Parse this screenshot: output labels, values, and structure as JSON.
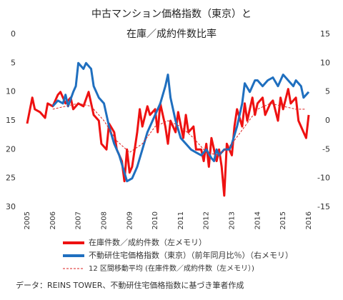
{
  "chart_data": {
    "type": "line",
    "title": "中古マンション価格指数（東京）と",
    "subtitle": "在庫／成約件数比率",
    "note": "データ：REINS TOWER、不動研住宅価格指数に基づき筆者作成",
    "xlim": [
      2005,
      2016
    ],
    "xticks": [
      2005,
      2006,
      2007,
      2008,
      2009,
      2010,
      2011,
      2012,
      2013,
      2014,
      2015,
      2016
    ],
    "ylim": [
      0,
      30
    ],
    "y_inverted": true,
    "yticks": [
      0,
      5,
      10,
      15,
      20,
      25,
      30
    ],
    "y2lim": [
      -15,
      15
    ],
    "y2ticks": [
      15,
      10,
      5,
      0,
      -5,
      -10,
      -15
    ],
    "grid": false,
    "series": [
      {
        "name": "在庫件数／成約件数（左メモリ）",
        "color": "#ee1111",
        "axis": "y",
        "dashed": false,
        "x": [
          2005.0,
          2005.2,
          2005.3,
          2005.5,
          2005.7,
          2005.8,
          2006.0,
          2006.2,
          2006.3,
          2006.5,
          2006.7,
          2006.8,
          2007.0,
          2007.2,
          2007.4,
          2007.6,
          2007.8,
          2007.9,
          2008.1,
          2008.2,
          2008.4,
          2008.5,
          2008.7,
          2008.8,
          2008.9,
          2009.0,
          2009.1,
          2009.3,
          2009.4,
          2009.5,
          2009.7,
          2009.8,
          2010.0,
          2010.1,
          2010.2,
          2010.4,
          2010.5,
          2010.6,
          2010.8,
          2010.9,
          2011.1,
          2011.2,
          2011.3,
          2011.5,
          2011.6,
          2011.8,
          2011.9,
          2012.0,
          2012.1,
          2012.2,
          2012.4,
          2012.5,
          2012.6,
          2012.7,
          2012.8,
          2013.0,
          2013.1,
          2013.2,
          2013.4,
          2013.5,
          2013.6,
          2013.8,
          2013.9,
          2014.0,
          2014.2,
          2014.3,
          2014.5,
          2014.6,
          2014.8,
          2014.9,
          2015.0,
          2015.2,
          2015.3,
          2015.5,
          2015.6,
          2015.8,
          2015.9,
          2016.0
        ],
        "values": [
          15.5,
          11,
          13,
          13.5,
          14.5,
          12,
          12.5,
          10.5,
          10,
          12,
          11,
          13,
          12,
          12.5,
          10,
          14,
          15,
          19,
          20,
          15.5,
          17,
          20,
          22,
          25.5,
          20,
          24,
          23,
          17,
          13,
          16,
          12.5,
          14,
          13,
          17,
          12,
          16,
          19,
          15,
          17,
          13.5,
          18,
          14,
          17,
          16,
          20,
          20,
          22,
          19,
          23,
          18,
          22,
          20,
          23,
          28,
          19,
          21,
          16,
          13,
          16,
          12,
          15,
          11,
          14,
          12,
          11,
          14,
          12,
          11.5,
          15,
          11,
          13,
          9.5,
          12,
          11,
          15,
          17,
          18,
          14
        ]
      },
      {
        "name": "不動研住宅価格指数（東京）（前年同月比％）（右メモリ）",
        "color": "#1f6fbf",
        "axis": "y2",
        "dashed": false,
        "x": [
          2006.0,
          2006.2,
          2006.4,
          2006.5,
          2006.6,
          2006.8,
          2006.9,
          2007.0,
          2007.2,
          2007.3,
          2007.5,
          2007.6,
          2007.8,
          2008.0,
          2008.2,
          2008.4,
          2008.6,
          2008.8,
          2008.9,
          2009.1,
          2009.3,
          2009.5,
          2009.7,
          2009.9,
          2010.0,
          2010.2,
          2010.4,
          2010.5,
          2010.6,
          2010.8,
          2011.0,
          2011.2,
          2011.4,
          2011.6,
          2011.8,
          2012.0,
          2012.2,
          2012.3,
          2012.4,
          2012.5,
          2012.7,
          2012.9,
          2013.0,
          2013.2,
          2013.4,
          2013.5,
          2013.7,
          2013.9,
          2014.0,
          2014.2,
          2014.4,
          2014.6,
          2014.8,
          2015.0,
          2015.2,
          2015.4,
          2015.5,
          2015.7,
          2015.8,
          2016.0
        ],
        "values": [
          2.5,
          3.5,
          3,
          4.5,
          2.5,
          5,
          6,
          10,
          9,
          10,
          9,
          6,
          4,
          3,
          -1,
          -4,
          -6,
          -9,
          -10.5,
          -10,
          -8,
          -5,
          -2,
          0,
          1,
          3,
          6,
          8,
          4,
          0,
          -3,
          -4,
          -5,
          -5.5,
          -6,
          -5,
          -6.5,
          -7,
          -5,
          -6,
          -5,
          -5,
          -4,
          -1,
          3,
          6.5,
          5,
          7,
          7,
          6,
          7,
          7.5,
          6,
          8,
          7,
          6,
          7,
          6,
          4,
          5
        ]
      },
      {
        "name": "12 区間移動平均 (在庫件数／成約件数（左メモリ）)",
        "color": "#dd2222",
        "axis": "y",
        "dashed": true,
        "x": [
          2006.0,
          2006.5,
          2007.0,
          2007.5,
          2008.0,
          2008.5,
          2009.0,
          2009.5,
          2010.0,
          2010.5,
          2011.0,
          2011.5,
          2012.0,
          2012.5,
          2013.0,
          2013.5,
          2014.0,
          2014.5,
          2015.0,
          2015.5,
          2015.9
        ],
        "values": [
          13,
          12.5,
          12,
          12.5,
          15,
          18.5,
          20.5,
          19,
          16,
          15,
          16,
          18,
          20.5,
          21,
          19,
          16,
          13,
          12,
          12.5,
          13,
          13
        ]
      }
    ]
  }
}
